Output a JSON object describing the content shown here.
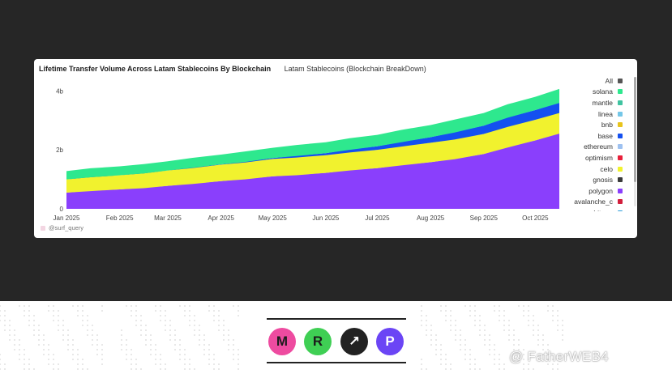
{
  "colors": {
    "polygon": "#8a3ffc",
    "celo": "#f1f22e",
    "base": "#1450f0",
    "solana": "#2ee88e"
  },
  "chart_data": {
    "type": "area",
    "title": "Lifetime Transfer Volume Across Latam Stablecoins By Blockchain",
    "subtitle": "Latam Stablecoins (Blockchain BreakDown)",
    "x": [
      "2025-01-01",
      "2025-01-15",
      "2025-02-01",
      "2025-02-15",
      "2025-03-01",
      "2025-03-15",
      "2025-04-01",
      "2025-04-15",
      "2025-05-01",
      "2025-05-15",
      "2025-06-01",
      "2025-06-15",
      "2025-07-01",
      "2025-07-15",
      "2025-08-01",
      "2025-08-15",
      "2025-09-01",
      "2025-09-15",
      "2025-10-01",
      "2025-10-15"
    ],
    "xtick_labels": [
      "Jan 2025",
      "Feb 2025",
      "Mar 2025",
      "Apr 2025",
      "May 2025",
      "Jun 2025",
      "Jul 2025",
      "Aug 2025",
      "Sep 2025",
      "Oct 2025"
    ],
    "yticks": [
      "0",
      "2b",
      "4b"
    ],
    "ylim": [
      0,
      4.2
    ],
    "unit": "b",
    "grid": false,
    "legend_position": "right",
    "series": [
      {
        "name": "polygon",
        "values": [
          0.55,
          0.6,
          0.66,
          0.7,
          0.78,
          0.84,
          0.94,
          1.0,
          1.1,
          1.14,
          1.22,
          1.3,
          1.38,
          1.47,
          1.58,
          1.68,
          1.86,
          2.08,
          2.32,
          2.55
        ]
      },
      {
        "name": "celo",
        "values": [
          0.45,
          0.47,
          0.48,
          0.5,
          0.52,
          0.54,
          0.56,
          0.57,
          0.59,
          0.6,
          0.6,
          0.61,
          0.62,
          0.64,
          0.66,
          0.67,
          0.68,
          0.7,
          0.7,
          0.7
        ]
      },
      {
        "name": "base",
        "values": [
          0.0,
          0.0,
          0.0,
          0.0,
          0.0,
          0.01,
          0.01,
          0.02,
          0.03,
          0.05,
          0.07,
          0.09,
          0.12,
          0.15,
          0.19,
          0.24,
          0.28,
          0.31,
          0.33,
          0.34
        ]
      },
      {
        "name": "solana",
        "values": [
          0.28,
          0.29,
          0.3,
          0.3,
          0.31,
          0.32,
          0.33,
          0.34,
          0.35,
          0.36,
          0.37,
          0.38,
          0.39,
          0.4,
          0.41,
          0.42,
          0.43,
          0.44,
          0.45,
          0.46
        ]
      }
    ],
    "legend": [
      {
        "name": "All",
        "color": "#555555"
      },
      {
        "name": "solana",
        "color": "#2ee88e"
      },
      {
        "name": "mantle",
        "color": "#3fc3a0"
      },
      {
        "name": "linea",
        "color": "#74c7e8"
      },
      {
        "name": "bnb",
        "color": "#e8c41c"
      },
      {
        "name": "base",
        "color": "#1450f0"
      },
      {
        "name": "ethereum",
        "color": "#9ec1f0"
      },
      {
        "name": "optimism",
        "color": "#e8203a"
      },
      {
        "name": "celo",
        "color": "#f1f22e"
      },
      {
        "name": "gnosis",
        "color": "#3a3a3a"
      },
      {
        "name": "polygon",
        "color": "#8a3ffc"
      },
      {
        "name": "avalanche_c",
        "color": "#d21f3c"
      },
      {
        "name": "arbitrum",
        "color": "#2a9bd9"
      }
    ],
    "source": "@surf_query"
  },
  "logos": [
    {
      "letter": "M",
      "color": "#ee4ba0",
      "icon": "m-logo-icon"
    },
    {
      "letter": "R",
      "color": "#3fcf54",
      "icon": "r-logo-icon"
    },
    {
      "letter": "↗",
      "color": "#222222",
      "icon": "arrow-logo-icon"
    },
    {
      "letter": "P",
      "color": "#6b45f5",
      "icon": "p-logo-icon"
    }
  ],
  "signature": "@ FatherWEB4"
}
